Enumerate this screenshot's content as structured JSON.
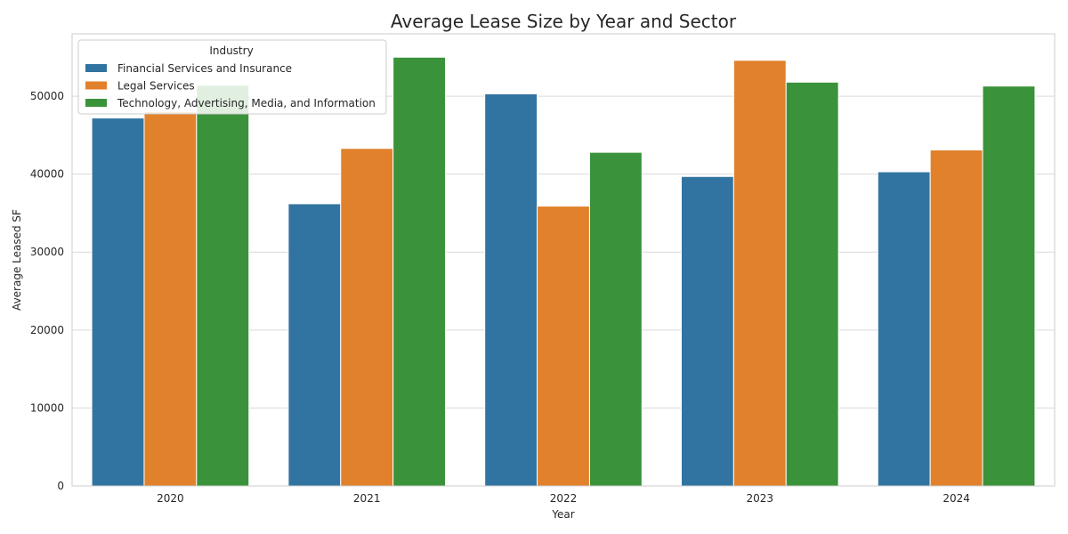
{
  "chart_data": {
    "type": "bar",
    "title": "Average Lease Size by Year and Sector",
    "xlabel": "Year",
    "ylabel": "Average Leased SF",
    "categories": [
      "2020",
      "2021",
      "2022",
      "2023",
      "2024"
    ],
    "ylim": [
      0,
      58000
    ],
    "yticks": [
      0,
      10000,
      20000,
      30000,
      40000,
      50000
    ],
    "grid": true,
    "legend": {
      "title": "Industry",
      "placement": "top-left"
    },
    "series": [
      {
        "name": "Financial Services and Insurance",
        "color": "#3274a1",
        "values": [
          47200,
          36200,
          50300,
          39700,
          40300
        ]
      },
      {
        "name": "Legal Services",
        "color": "#e1812c",
        "values": [
          48000,
          43300,
          35900,
          54600,
          43100
        ]
      },
      {
        "name": "Technology, Advertising, Media, and Information",
        "color": "#3a923a",
        "values": [
          51400,
          55000,
          42800,
          51800,
          51300
        ]
      }
    ]
  }
}
